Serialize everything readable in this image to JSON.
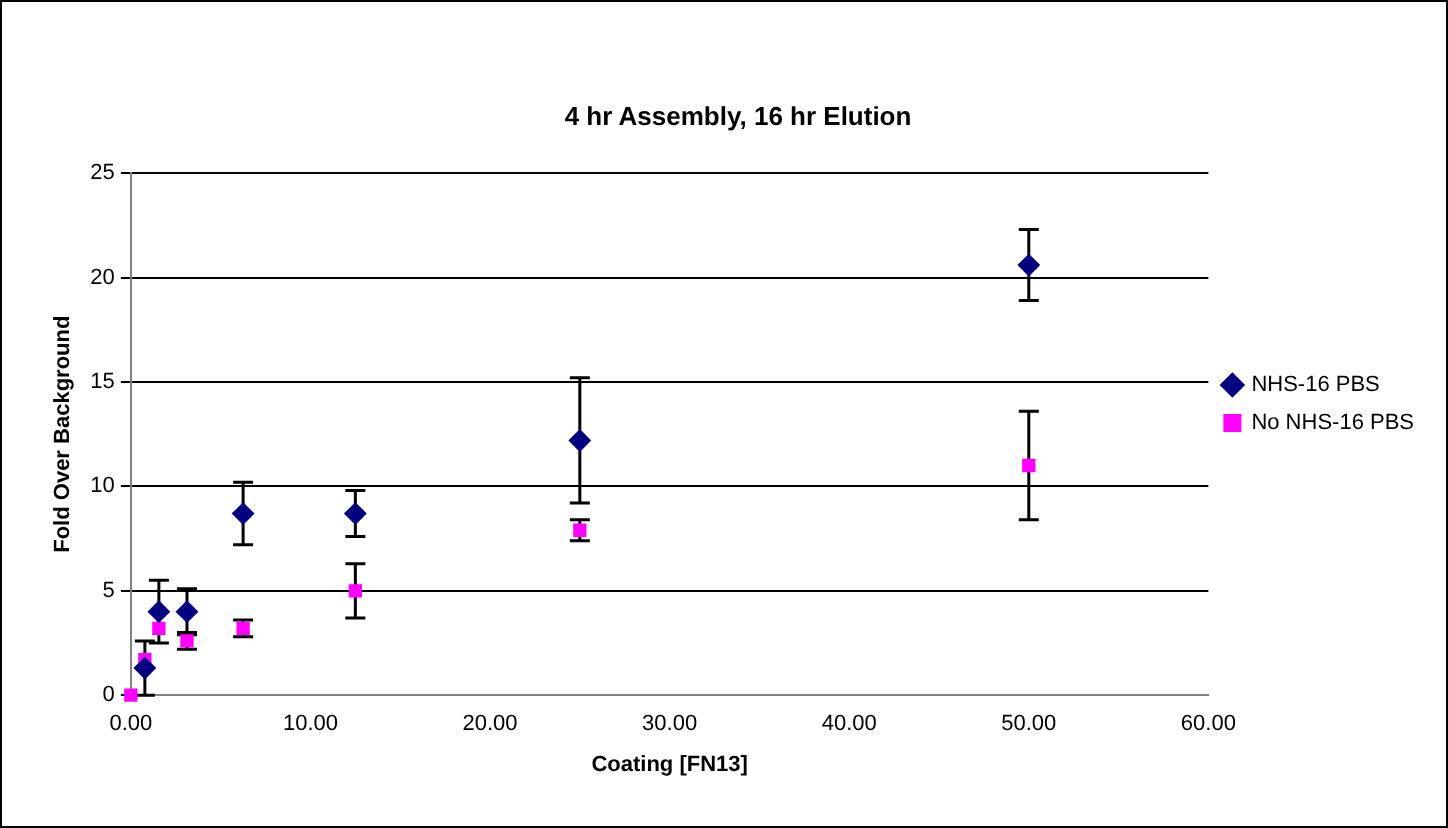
{
  "chart_data": {
    "type": "scatter",
    "title": "4 hr Assembly, 16 hr Elution",
    "xlabel": "Coating [FN13]",
    "ylabel": "Fold Over Background",
    "x": [
      0,
      0.78,
      1.56,
      3.125,
      6.25,
      12.5,
      25,
      50
    ],
    "series": [
      {
        "name": "NHS-16 PBS",
        "color": "#000080",
        "marker": "diamond",
        "values": [
          null,
          1.3,
          4.0,
          4.0,
          8.7,
          8.7,
          12.2,
          20.6
        ],
        "errors": [
          null,
          1.3,
          1.5,
          1.1,
          1.5,
          1.1,
          3.0,
          1.7
        ]
      },
      {
        "name": "No NHS-16 PBS",
        "color": "#ff00ff",
        "marker": "square",
        "values": [
          0,
          1.7,
          3.2,
          2.6,
          3.2,
          5.0,
          7.9,
          11.0
        ],
        "errors": [
          null,
          null,
          null,
          0.4,
          0.4,
          1.3,
          0.5,
          2.6
        ]
      }
    ],
    "xlim": [
      0,
      60
    ],
    "xticks": [
      {
        "value": 0,
        "label": "0.00"
      },
      {
        "value": 10,
        "label": "10.00"
      },
      {
        "value": 20,
        "label": "20.00"
      },
      {
        "value": 30,
        "label": "30.00"
      },
      {
        "value": 40,
        "label": "40.00"
      },
      {
        "value": 50,
        "label": "50.00"
      },
      {
        "value": 60,
        "label": "60.00"
      }
    ],
    "ylim": [
      0,
      25
    ],
    "yticks": [
      0,
      5,
      10,
      15,
      20,
      25
    ],
    "grid": "y",
    "legend": "right"
  }
}
